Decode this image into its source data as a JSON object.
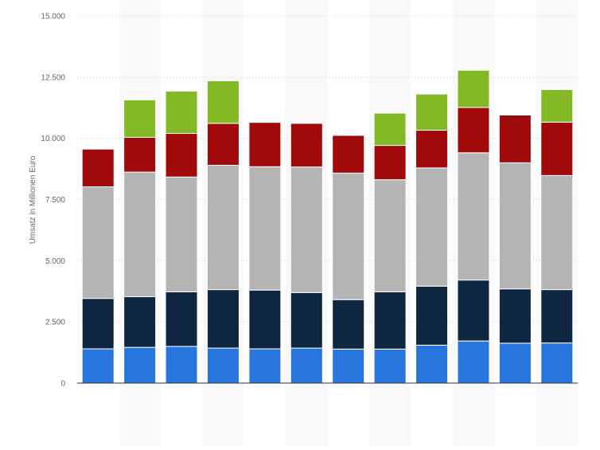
{
  "chart_data": {
    "type": "bar",
    "stacked": true,
    "ylabel": "Umsatz in Millionen Euro",
    "xlabel": "",
    "ylim": [
      0,
      15000
    ],
    "yticks": [
      0,
      2500,
      5000,
      7500,
      10000,
      12500,
      15000
    ],
    "ytick_labels": [
      "0",
      "2.500",
      "5.000",
      "7.500",
      "10.000",
      "12.500",
      "15.000"
    ],
    "categories": [
      "",
      "",
      "",
      "",
      "",
      "",
      "",
      "",
      "",
      "",
      "",
      ""
    ],
    "grid": true,
    "legend": "none",
    "series": [
      {
        "color": "#2876dd",
        "values": [
          1400,
          1460,
          1500,
          1430,
          1400,
          1430,
          1390,
          1390,
          1550,
          1720,
          1630,
          1640
        ]
      },
      {
        "color": "#0f2640",
        "values": [
          2060,
          2070,
          2230,
          2390,
          2400,
          2270,
          2020,
          2340,
          2410,
          2490,
          2220,
          2180
        ]
      },
      {
        "color": "#b4b4b4",
        "values": [
          4560,
          5090,
          4690,
          5080,
          5040,
          5130,
          5170,
          4580,
          4830,
          5200,
          5150,
          4660
        ]
      },
      {
        "color": "#a10a0b",
        "values": [
          1540,
          1420,
          1780,
          1710,
          1810,
          1780,
          1540,
          1400,
          1540,
          1850,
          1950,
          2180
        ]
      },
      {
        "color": "#83b925",
        "values": [
          0,
          1530,
          1730,
          1740,
          0,
          0,
          0,
          1320,
          1480,
          1520,
          0,
          1330
        ]
      }
    ]
  }
}
